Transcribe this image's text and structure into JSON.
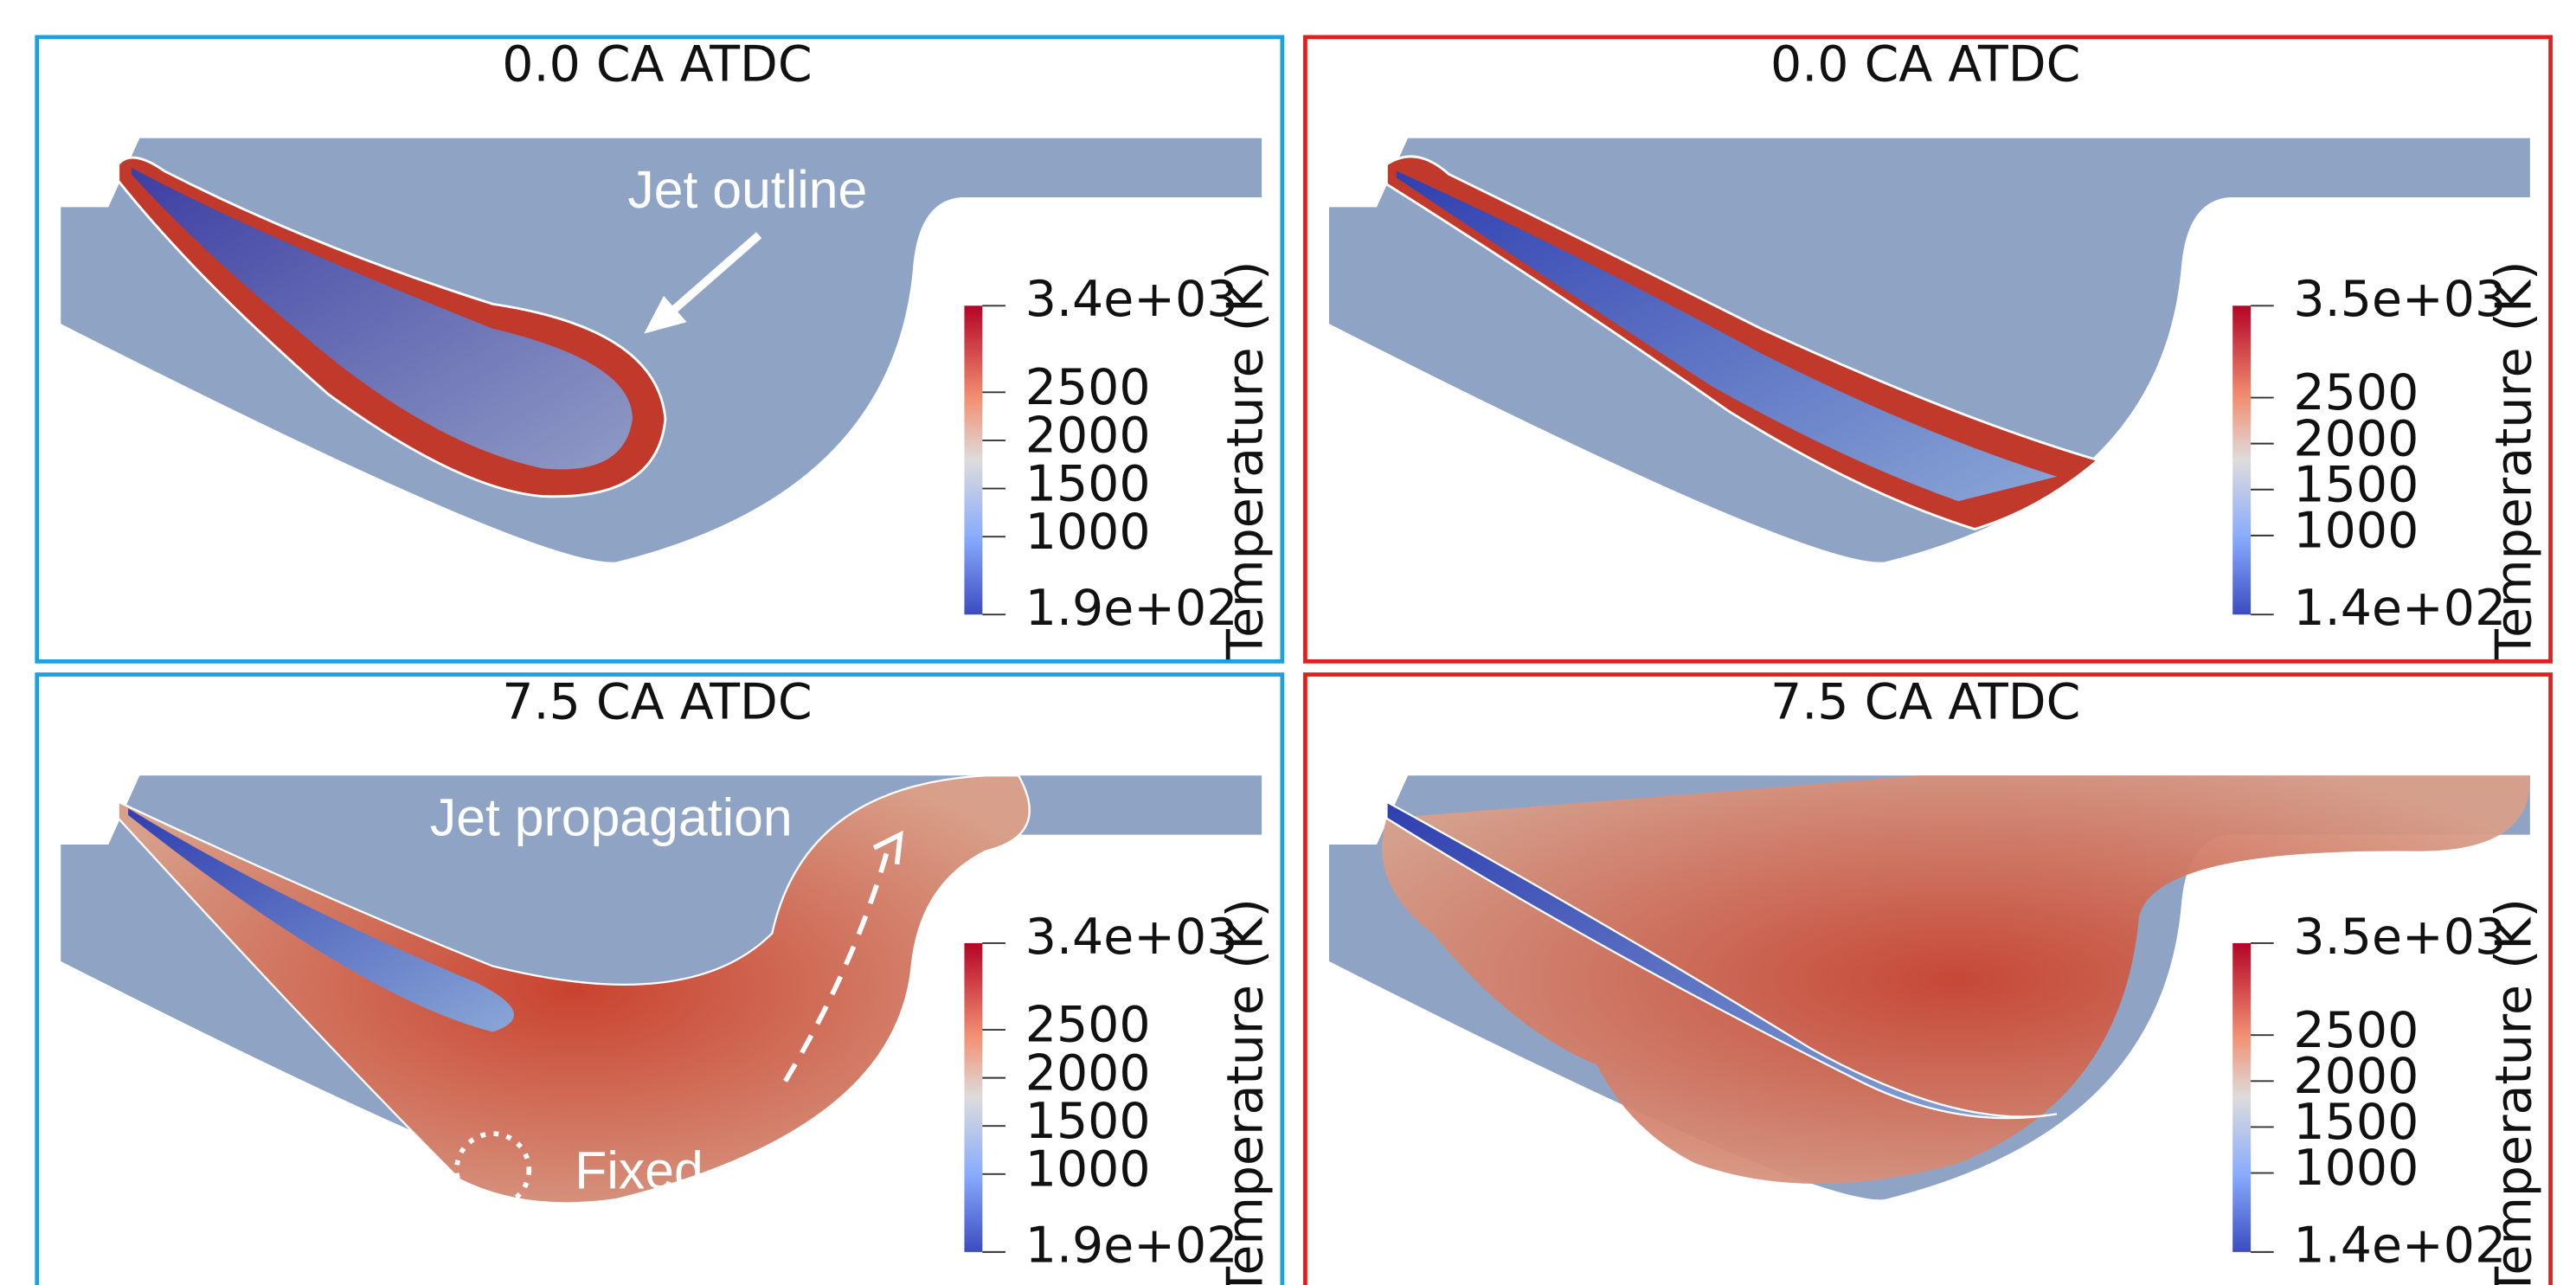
{
  "panels": [
    {
      "title": "0.0 CA ATDC",
      "border": "#1ba1e2",
      "colorbar": {
        "max": {
          "value": 3400,
          "label": "3.4e+03"
        },
        "min": {
          "value": 190,
          "label": "1.9e+02"
        },
        "ticks": [
          2500,
          2000,
          1500,
          1000
        ],
        "label": "Temperature (K)"
      },
      "annotations": [
        "Jet outline"
      ]
    },
    {
      "title": "0.0 CA ATDC",
      "border": "#e02020",
      "colorbar": {
        "max": {
          "value": 3500,
          "label": "3.5e+03"
        },
        "min": {
          "value": 140,
          "label": "1.4e+02"
        },
        "ticks": [
          2500,
          2000,
          1500,
          1000
        ],
        "label": "Temperature (K)"
      },
      "annotations": []
    },
    {
      "title": "7.5 CA ATDC",
      "border": "#1ba1e2",
      "colorbar": {
        "max": {
          "value": 3400,
          "label": "3.4e+03"
        },
        "min": {
          "value": 190,
          "label": "1.9e+02"
        },
        "ticks": [
          2500,
          2000,
          1500,
          1000
        ],
        "label": "Temperature (K)"
      },
      "annotations": [
        "Jet propagation",
        "Fixed"
      ]
    },
    {
      "title": "7.5 CA ATDC",
      "border": "#e02020",
      "colorbar": {
        "max": {
          "value": 3500,
          "label": "3.5e+03"
        },
        "min": {
          "value": 140,
          "label": "1.4e+02"
        },
        "ticks": [
          2500,
          2000,
          1500,
          1000
        ],
        "label": "Temperature (K)"
      },
      "annotations": []
    }
  ]
}
